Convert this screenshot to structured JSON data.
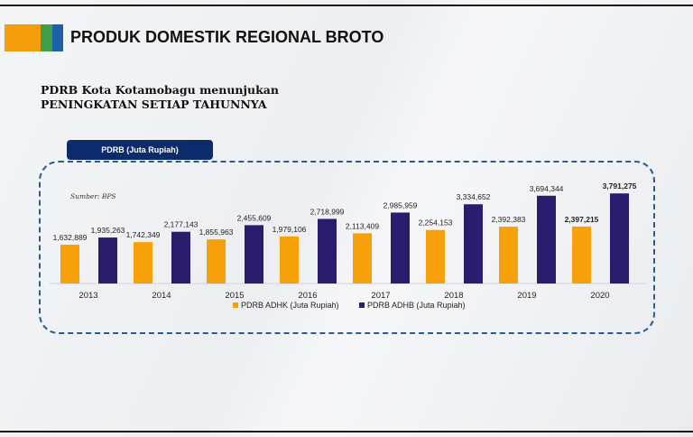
{
  "header": {
    "title": "PRODUK DOMESTIK REGIONAL BROTO"
  },
  "subtitle": {
    "line1": "PDRB Kota Kotamobagu menunjukan",
    "line2": "PENINGKATAN SETIAP TAHUNNYA"
  },
  "chart_tab": "PDRB (Juta Rupiah)",
  "colors": {
    "orange": "#f59e0b",
    "green": "#3f9e47",
    "blue": "#1d5fa8",
    "adhk": "#f7a10a",
    "adhb": "#2b1c6e"
  },
  "chart_data": {
    "type": "bar",
    "title": "PDRB (Juta Rupiah)",
    "source": "Sumber: BPS",
    "categories": [
      "2013",
      "2014",
      "2015",
      "2016",
      "2017",
      "2018",
      "2019",
      "2020"
    ],
    "series": [
      {
        "name": "PDRB ADHK (Juta Rupiah)",
        "values": [
          1632889,
          1742349,
          1855963,
          1979106,
          2113409,
          2254153,
          2392383,
          2397215
        ],
        "labels": [
          "1,632,889",
          "1,742,349",
          "1,855,963",
          "1,979,106",
          "2,113,409",
          "2,254,153",
          "2,392,383",
          "2,397,215"
        ]
      },
      {
        "name": "PDRB ADHB (Juta Rupiah)",
        "values": [
          1935263,
          2177143,
          2455609,
          2718999,
          2985959,
          3334652,
          3694344,
          3791275
        ],
        "labels": [
          "1,935,263",
          "2,177,143",
          "2,455,609",
          "2,718,999",
          "2,985,959",
          "3,334,652",
          "3,694,344",
          "3,791,275"
        ]
      }
    ],
    "ylim": [
      0,
      3800000
    ],
    "grid": false,
    "legend": "bottom"
  }
}
